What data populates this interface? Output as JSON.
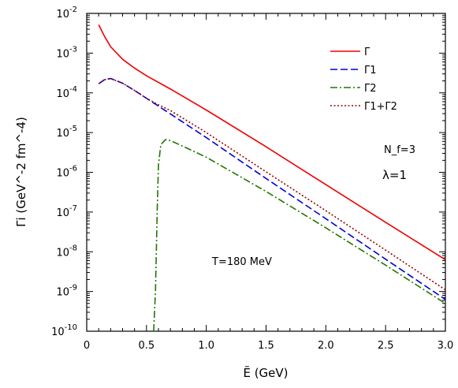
{
  "chart_data": {
    "type": "line",
    "x_label": "Ẽ (GeV)",
    "y_label": "Γi (GeV^-2 fm^-4)",
    "y_scale": "log",
    "xlim": [
      0,
      3.0
    ],
    "ylim": [
      1e-10,
      0.01
    ],
    "x_ticks": [
      "0",
      "0.5",
      "1.0",
      "1.5",
      "2.0",
      "2.5",
      "3.0"
    ],
    "y_ticks": [
      {
        "base": "10",
        "exp": "-10"
      },
      {
        "base": "10",
        "exp": "-9"
      },
      {
        "base": "10",
        "exp": "-8"
      },
      {
        "base": "10",
        "exp": "-7"
      },
      {
        "base": "10",
        "exp": "-6"
      },
      {
        "base": "10",
        "exp": "-5"
      },
      {
        "base": "10",
        "exp": "-4"
      },
      {
        "base": "10",
        "exp": "-3"
      },
      {
        "base": "10",
        "exp": "-2"
      }
    ],
    "annotations": {
      "nf": "N_f=3",
      "lambda": "λ=1",
      "temperature": "T=180 MeV"
    },
    "legend_position": "top-right",
    "series": [
      {
        "name": "Γ",
        "color": "#ee0000",
        "dash": "solid",
        "x": [
          0.1,
          0.15,
          0.2,
          0.3,
          0.4,
          0.5,
          0.7,
          1.0,
          1.5,
          2.0,
          2.5,
          3.0
        ],
        "y": [
          0.0052,
          0.0026,
          0.00145,
          0.0007,
          0.00042,
          0.00027,
          0.000125,
          3.7e-05,
          4.4e-06,
          4.9e-07,
          5.5e-08,
          6.3e-09
        ]
      },
      {
        "name": "Γ1",
        "color": "#0000dd",
        "dash": "dashed",
        "x": [
          0.1,
          0.15,
          0.2,
          0.3,
          0.4,
          0.5,
          0.7,
          1.0,
          1.5,
          2.0,
          2.5,
          3.0
        ],
        "y": [
          0.00017,
          0.000215,
          0.00023,
          0.000175,
          0.000115,
          7.3e-05,
          2.95e-05,
          7.5e-06,
          7e-07,
          6.8e-08,
          6.5e-09,
          6.3e-10
        ]
      },
      {
        "name": "Γ2",
        "color": "#227700",
        "dash": "dashdot",
        "x": [
          0.56,
          0.575,
          0.59,
          0.6,
          0.62,
          0.66,
          0.7,
          0.8,
          1.0,
          1.5,
          2.0,
          2.5,
          3.0
        ],
        "y": [
          1e-10,
          1e-09,
          1.2e-07,
          1.5e-06,
          5e-06,
          6.7e-06,
          6.3e-06,
          4.6e-06,
          2.4e-06,
          3.3e-07,
          4e-08,
          4.6e-09,
          5e-10
        ]
      },
      {
        "name": "Γ1+Γ2",
        "color": "#990000",
        "dash": "dotted",
        "x": [
          0.1,
          0.15,
          0.2,
          0.3,
          0.4,
          0.5,
          0.6,
          0.7,
          1.0,
          1.5,
          2.0,
          2.5,
          3.0
        ],
        "y": [
          0.00017,
          0.000215,
          0.00023,
          0.000175,
          0.000115,
          7.3e-05,
          5e-05,
          3.6e-05,
          1e-05,
          1.03e-06,
          1.08e-07,
          1.1e-08,
          1.1e-09
        ]
      }
    ]
  }
}
